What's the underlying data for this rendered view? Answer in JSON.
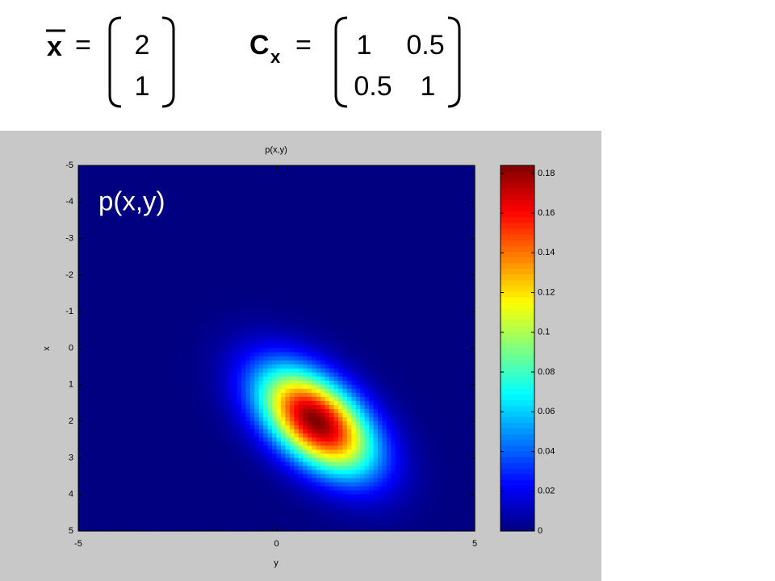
{
  "equations": {
    "mean_symbol": "x",
    "equals": "=",
    "mean": [
      2,
      1
    ],
    "cov_symbol": "C",
    "cov_subscript": "x",
    "cov": [
      [
        1,
        0.5
      ],
      [
        0.5,
        1
      ]
    ]
  },
  "chart_data": {
    "type": "heatmap",
    "title": "p(x,y)",
    "annotation": "p(x,y)",
    "xlabel": "y",
    "ylabel": "x",
    "xlim": [
      -5,
      5
    ],
    "ylim": [
      -5,
      5
    ],
    "y_direction": "reverse",
    "xticks": [
      -5,
      0,
      5
    ],
    "yticks": [
      -5,
      -4,
      -3,
      -2,
      -1,
      0,
      1,
      2,
      3,
      4,
      5
    ],
    "colormap": "jet",
    "clim": [
      0,
      0.184
    ],
    "cticks": [
      0,
      0.02,
      0.04,
      0.06,
      0.08,
      0.1,
      0.12,
      0.14,
      0.16,
      0.18
    ]
  }
}
